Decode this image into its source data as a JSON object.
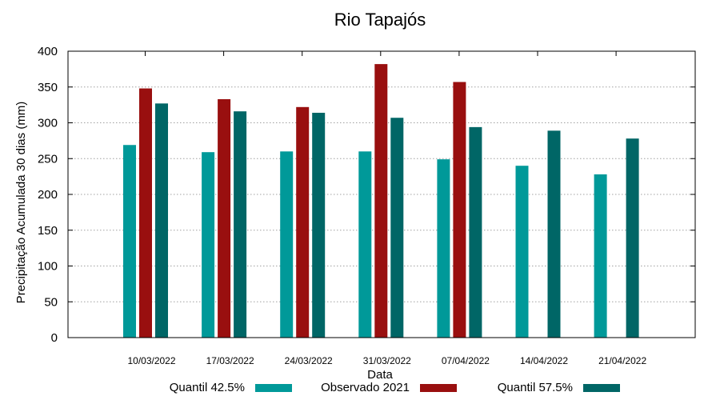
{
  "chart_data": {
    "type": "bar",
    "title": "Rio Tapajós",
    "xlabel": "Data",
    "ylabel": "Precipitação Acumulada 30 dias (mm)",
    "ylim": [
      0,
      400
    ],
    "yticks": [
      "0",
      "50",
      "100",
      "150",
      "200",
      "250",
      "300",
      "350",
      "400"
    ],
    "grid": true,
    "legend_position": "bottom",
    "categories": [
      "10/03/2022",
      "17/03/2022",
      "24/03/2022",
      "31/03/2022",
      "07/04/2022",
      "14/04/2022",
      "21/04/2022"
    ],
    "series": [
      {
        "name": "Quantil 42.5%",
        "color": "#009999",
        "values": [
          269,
          259,
          260,
          260,
          249,
          240,
          228
        ]
      },
      {
        "name": "Observado 2021",
        "color": "#990f0f",
        "values": [
          348,
          333,
          322,
          382,
          357,
          null,
          null
        ]
      },
      {
        "name": "Quantil 57.5%",
        "color": "#006666",
        "values": [
          327,
          316,
          314,
          307,
          294,
          289,
          278
        ]
      }
    ]
  }
}
